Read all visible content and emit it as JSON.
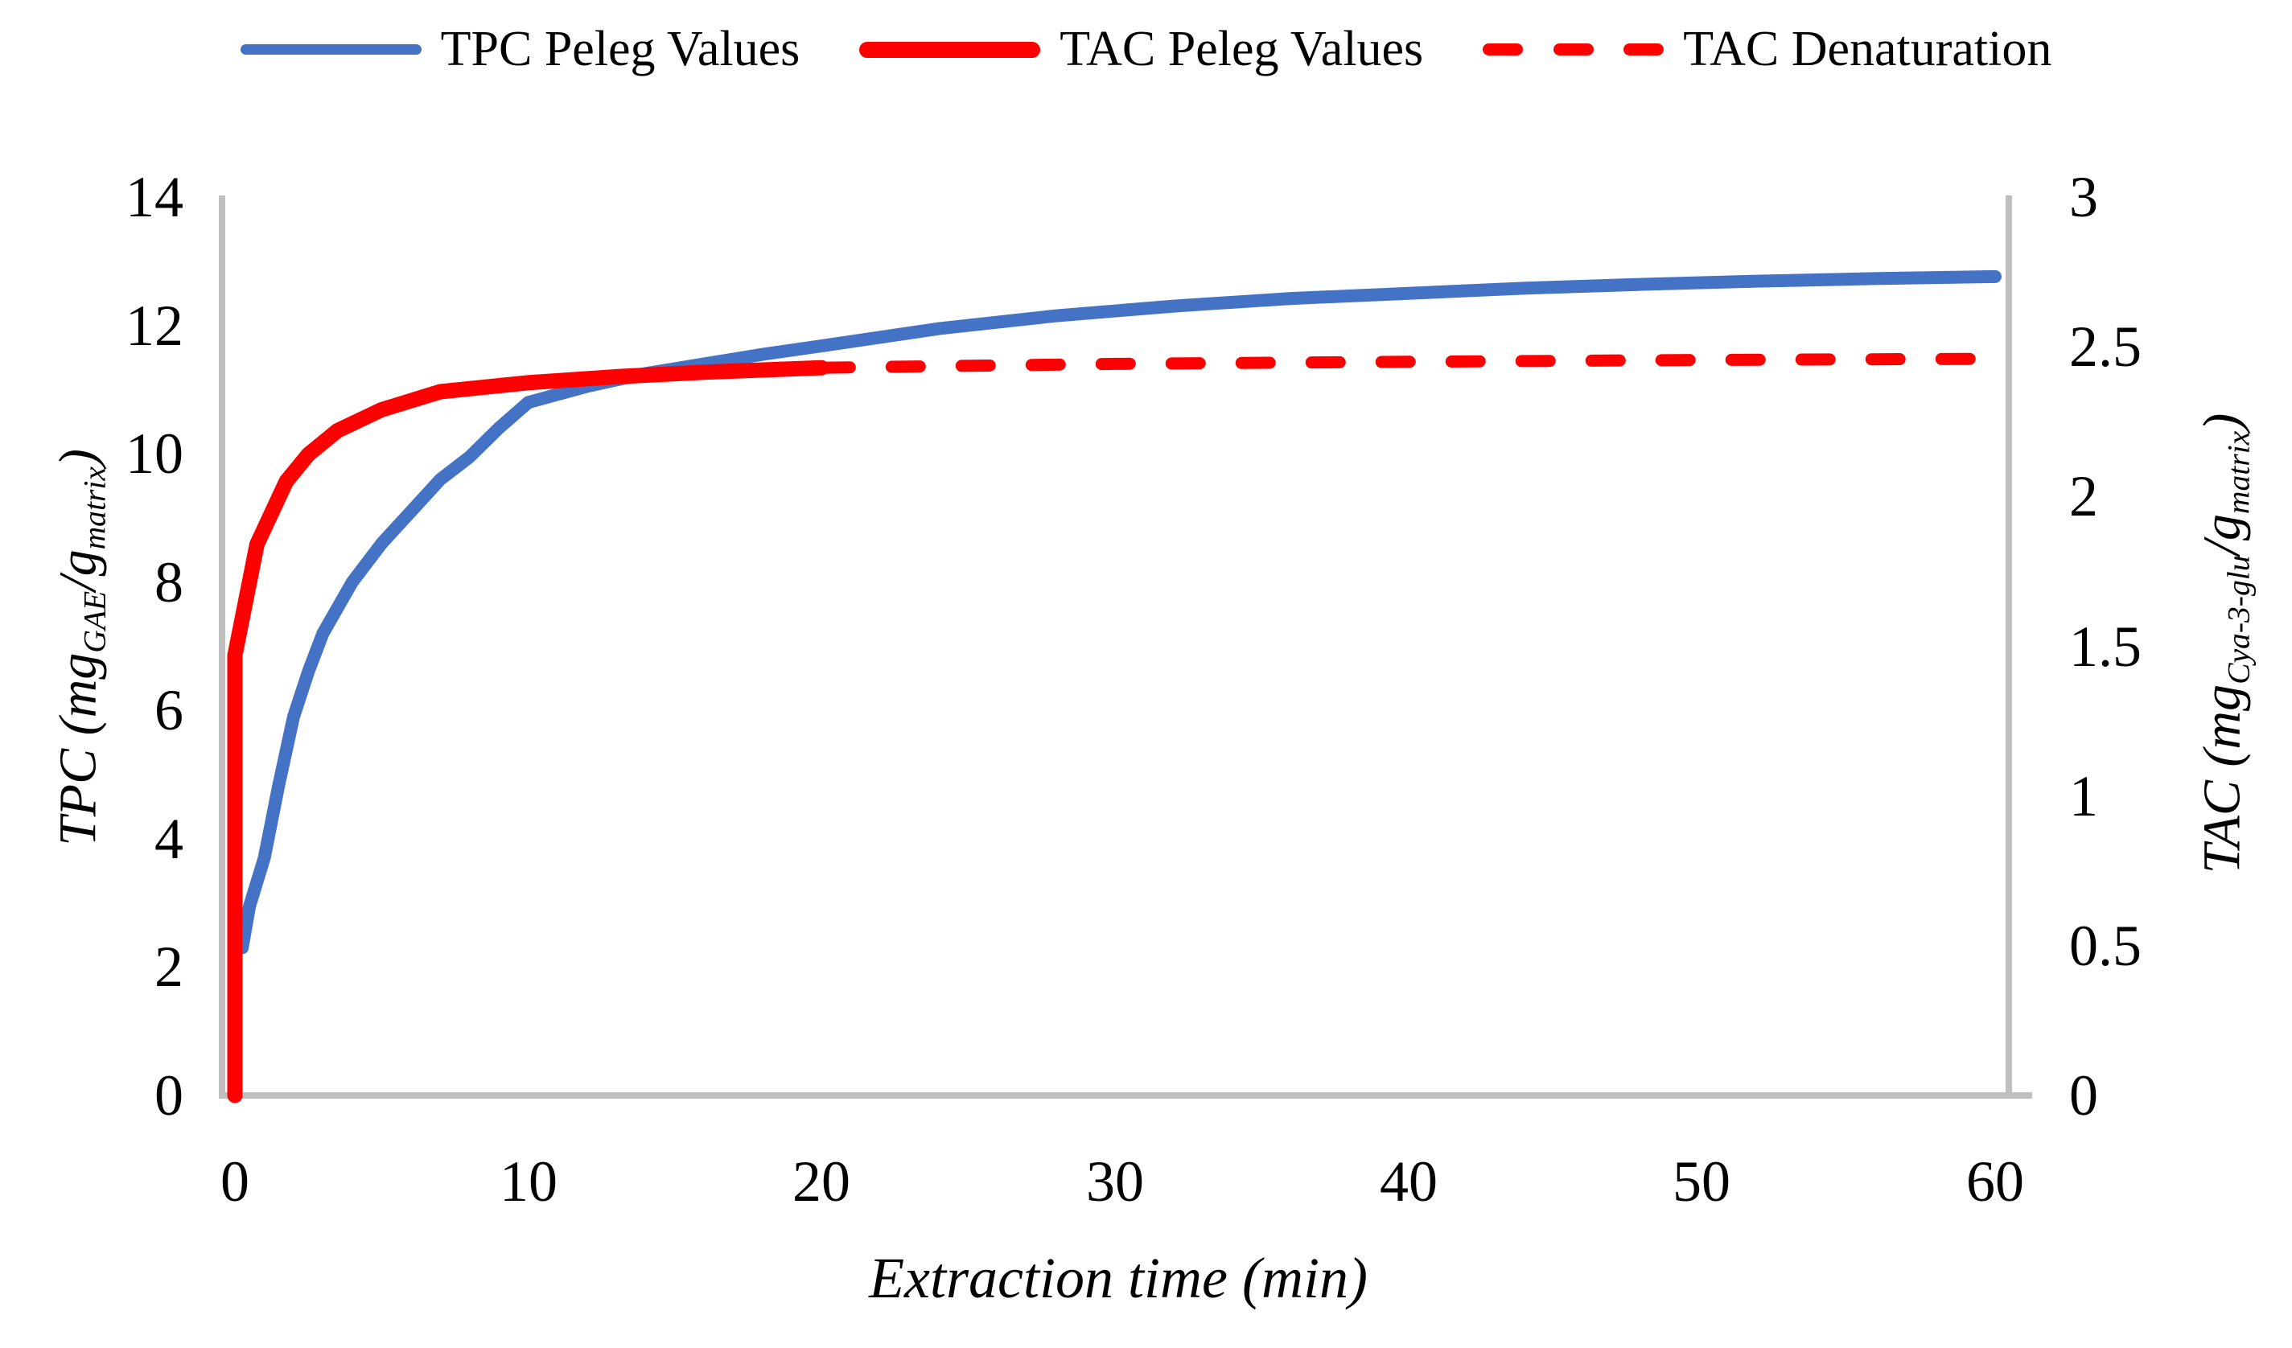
{
  "colors": {
    "tpc_blue": "#4472C4",
    "tac_red": "#FF0000",
    "axis_line": "#BFBFBF",
    "text": "#000000",
    "background": "#FFFFFF"
  },
  "legend": {
    "position": "top",
    "items": [
      {
        "label": "TPC Peleg Values",
        "color": "#4472C4",
        "style": "solid",
        "thickness": 13
      },
      {
        "label": "TAC Peleg Values",
        "color": "#FF0000",
        "style": "solid",
        "thickness": 20
      },
      {
        "label": "TAC Denaturation",
        "color": "#FF0000",
        "style": "dashed",
        "thickness": 15
      }
    ]
  },
  "chart_data": {
    "type": "line",
    "title": "",
    "grid": false,
    "legend_position": "top",
    "x_axis": {
      "title": "Extraction time (min)",
      "range": [
        0,
        60
      ],
      "ticks": [
        "0",
        "10",
        "20",
        "30",
        "40",
        "50",
        "60"
      ],
      "tick_values": [
        0,
        10,
        20,
        30,
        40,
        50,
        60
      ]
    },
    "y_axis_left": {
      "title": "TPC (mg_GAE/g_matrix)",
      "title_parts": [
        {
          "text": "TPC (mg"
        },
        {
          "text": "GAE",
          "sub": true
        },
        {
          "text": "/g"
        },
        {
          "text": "matrix",
          "sub": true
        },
        {
          "text": ")"
        }
      ],
      "range": [
        0,
        14
      ],
      "ticks": [
        "0",
        "2",
        "4",
        "6",
        "8",
        "10",
        "12",
        "14"
      ],
      "tick_values": [
        0,
        2,
        4,
        6,
        8,
        10,
        12,
        14
      ]
    },
    "y_axis_right": {
      "title": "TAC (mg_Cya-3-glu/g_matrix)",
      "title_parts": [
        {
          "text": "TAC (mg"
        },
        {
          "text": "Cya-3-glu",
          "sub": true
        },
        {
          "text": "/g"
        },
        {
          "text": "matrix",
          "sub": true
        },
        {
          "text": ")"
        }
      ],
      "range": [
        0,
        3
      ],
      "ticks": [
        "0",
        "0.5",
        "1",
        "1.5",
        "2",
        "2.5",
        "3"
      ],
      "tick_values": [
        0,
        0.5,
        1,
        1.5,
        2,
        2.5,
        3
      ]
    },
    "series": [
      {
        "name": "TPC Peleg Values",
        "axis": "left",
        "color": "#4472C4",
        "style": "solid",
        "width": 16,
        "points": [
          [
            0.25,
            2.3
          ],
          [
            0.5,
            2.95
          ],
          [
            1,
            3.7
          ],
          [
            1.5,
            4.85
          ],
          [
            2,
            5.9
          ],
          [
            2.5,
            6.6
          ],
          [
            3,
            7.2
          ],
          [
            4,
            8.0
          ],
          [
            5,
            8.6
          ],
          [
            6,
            9.1
          ],
          [
            7,
            9.6
          ],
          [
            8,
            9.95
          ],
          [
            9,
            10.4
          ],
          [
            10,
            10.8
          ],
          [
            12,
            11.05
          ],
          [
            14,
            11.25
          ],
          [
            16,
            11.4
          ],
          [
            18,
            11.55
          ],
          [
            20,
            11.68
          ],
          [
            24,
            11.95
          ],
          [
            28,
            12.15
          ],
          [
            32,
            12.3
          ],
          [
            36,
            12.42
          ],
          [
            40,
            12.5
          ],
          [
            44,
            12.58
          ],
          [
            48,
            12.64
          ],
          [
            52,
            12.69
          ],
          [
            56,
            12.73
          ],
          [
            60,
            12.76
          ]
        ]
      },
      {
        "name": "TAC Peleg Values",
        "axis": "right",
        "color": "#FF0000",
        "style": "solid",
        "width": 19,
        "points": [
          [
            0,
            0
          ],
          [
            0,
            1.47
          ],
          [
            0.75,
            1.84
          ],
          [
            1.75,
            2.05
          ],
          [
            2.5,
            2.14
          ],
          [
            3.5,
            2.22
          ],
          [
            5,
            2.29
          ],
          [
            7,
            2.35
          ],
          [
            10,
            2.38
          ],
          [
            13,
            2.4
          ],
          [
            16,
            2.415
          ],
          [
            20,
            2.43
          ]
        ]
      },
      {
        "name": "TAC Denaturation",
        "axis": "right",
        "color": "#FF0000",
        "style": "dashed",
        "width": 15,
        "points": [
          [
            20,
            2.43
          ],
          [
            30,
            2.443
          ],
          [
            40,
            2.45
          ],
          [
            50,
            2.456
          ],
          [
            60,
            2.46
          ]
        ]
      }
    ]
  }
}
